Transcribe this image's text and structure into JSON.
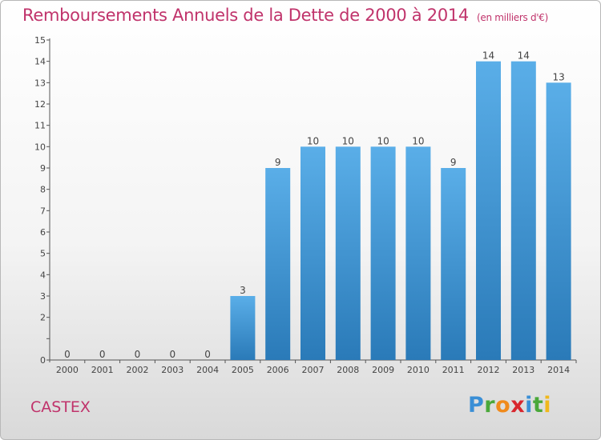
{
  "header": {
    "title": "Remboursements Annuels de la Dette de 2000 à 2014",
    "unit": "(en milliers d'€)"
  },
  "footer": {
    "commune": "CASTEX",
    "logo": "Proxiti"
  },
  "colors": {
    "title": "#c0336b",
    "bar_light": "#5aaee8",
    "bar_dark": "#2a7ab8"
  },
  "chart_data": {
    "type": "bar",
    "title": "Remboursements Annuels de la Dette de 2000 à 2014",
    "categories": [
      "2000",
      "2001",
      "2002",
      "2003",
      "2004",
      "2005",
      "2006",
      "2007",
      "2008",
      "2009",
      "2010",
      "2011",
      "2012",
      "2013",
      "2014"
    ],
    "values": [
      0,
      0,
      0,
      0,
      0,
      3,
      9,
      10,
      10,
      10,
      10,
      9,
      14,
      14,
      13
    ],
    "ylim": [
      0,
      15
    ],
    "yticks": [
      "0",
      "",
      "2",
      "3",
      "4",
      "5",
      "6",
      "7",
      "8",
      "9",
      "10",
      "11",
      "12",
      "13",
      "14",
      "15"
    ],
    "grid": false
  }
}
